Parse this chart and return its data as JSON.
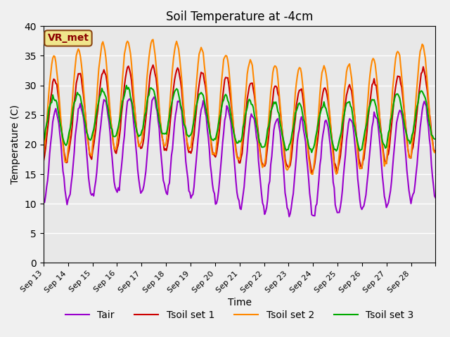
{
  "title": "Soil Temperature at -4cm",
  "xlabel": "Time",
  "ylabel": "Temperature (C)",
  "ylim": [
    0,
    40
  ],
  "yticks": [
    0,
    5,
    10,
    15,
    20,
    25,
    30,
    35,
    40
  ],
  "background_color": "#e8e8e8",
  "annotation_text": "VR_met",
  "annotation_box_color": "#f0e68c",
  "annotation_border_color": "#8b4513",
  "annotation_text_color": "#8b0000",
  "line_colors": {
    "Tair": "#9900cc",
    "Tsoil_set1": "#cc0000",
    "Tsoil_set2": "#ff8800",
    "Tsoil_set3": "#00aa00"
  },
  "line_widths": {
    "Tair": 1.5,
    "Tsoil_set1": 1.5,
    "Tsoil_set2": 1.5,
    "Tsoil_set3": 1.5
  },
  "legend_labels": [
    "Tair",
    "Tsoil set 1",
    "Tsoil set 2",
    "Tsoil set 3"
  ],
  "x_tick_labels": [
    "Sep 13",
    "Sep 14",
    "Sep 15",
    "Sep 16",
    "Sep 17",
    "Sep 18",
    "Sep 19",
    "Sep 20",
    "Sep 21",
    "Sep 22",
    "Sep 23",
    "Sep 24",
    "Sep 25",
    "Sep 26",
    "Sep 27",
    "Sep 28"
  ],
  "n_days": 16,
  "points_per_day": 24,
  "tair_base": 18,
  "tair_amplitude": 8,
  "tsoil1_base": 24,
  "tsoil1_amplitude": 6,
  "tsoil2_base": 27,
  "tsoil2_amplitude": 6,
  "tsoil3_base": 25,
  "tsoil3_amplitude": 3,
  "grid_color": "#ffffff",
  "legend_fontsize": 10,
  "title_fontsize": 12
}
